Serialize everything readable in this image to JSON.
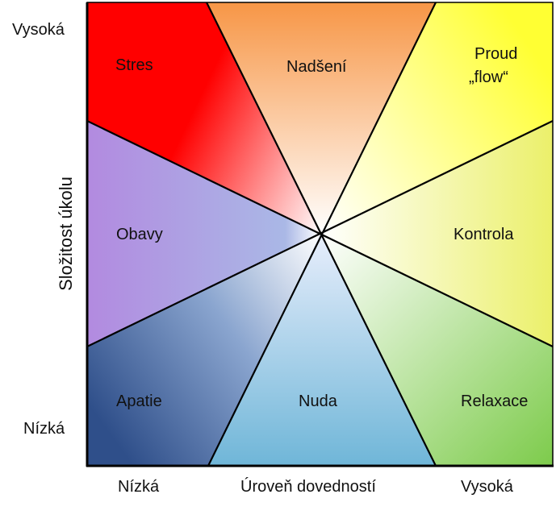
{
  "axes": {
    "y_title": "Složitost úkolu",
    "y_high": "Vysoká",
    "y_low": "Nízká",
    "x_title": "Úroveň dovedností",
    "x_low": "Nízká",
    "x_high": "Vysoká"
  },
  "regions": {
    "stres": "Stres",
    "nadseni": "Nadšení",
    "proud_line1": "Proud",
    "proud_line2": "„flow“",
    "obavy": "Obavy",
    "kontrola": "Kontrola",
    "apatie": "Apatie",
    "nuda": "Nuda",
    "relaxace": "Relaxace"
  },
  "colors": {
    "stres": "#ff0000",
    "nadseni": "#f79646",
    "proud": "#ffff33",
    "obavy": "#b28ae0",
    "kontrola": "#ebf06a",
    "apatie": "#2f4f8a",
    "nuda": "#6fb6d8",
    "relaxace": "#7dcb4b",
    "center": "#ffffff",
    "border": "#000000"
  }
}
